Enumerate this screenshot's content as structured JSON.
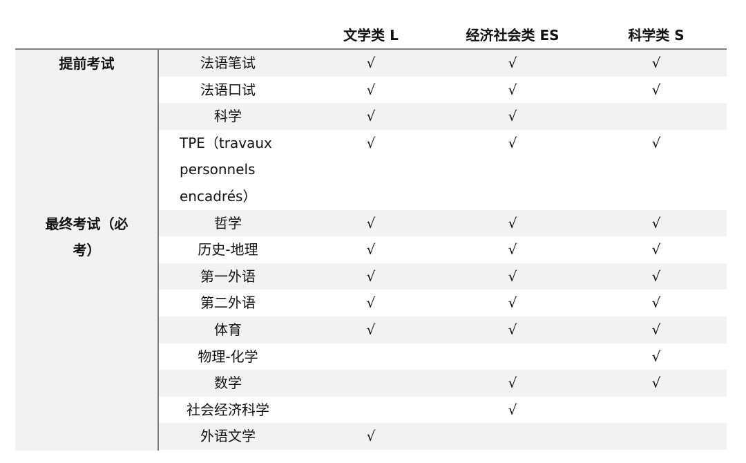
{
  "columns": {
    "group": "",
    "subject": "",
    "l": "文学类 L",
    "es": "经济社会类 ES",
    "s": "科学类 S"
  },
  "groups": {
    "early": "提前考试",
    "final": "最终考试（必考）"
  },
  "check_mark": "√",
  "rows": [
    {
      "subject": "法语笔试",
      "l": "√",
      "es": "√",
      "s": "√"
    },
    {
      "subject": "法语口试",
      "l": "√",
      "es": "√",
      "s": "√"
    },
    {
      "subject": "科学",
      "l": "√",
      "es": "√",
      "s": ""
    },
    {
      "subject": "TPE（travaux personnels encadrés）",
      "l": "√",
      "es": "√",
      "s": "√"
    },
    {
      "subject": "哲学",
      "l": "√",
      "es": "√",
      "s": "√"
    },
    {
      "subject": "历史-地理",
      "l": "√",
      "es": "√",
      "s": "√"
    },
    {
      "subject": "第一外语",
      "l": "√",
      "es": "√",
      "s": "√"
    },
    {
      "subject": "第二外语",
      "l": "√",
      "es": "√",
      "s": "√"
    },
    {
      "subject": "体育",
      "l": "√",
      "es": "√",
      "s": "√"
    },
    {
      "subject": "物理-化学",
      "l": "",
      "es": "",
      "s": "√"
    },
    {
      "subject": "数学",
      "l": "",
      "es": "√",
      "s": "√"
    },
    {
      "subject": "社会经济科学",
      "l": "",
      "es": "√",
      "s": ""
    },
    {
      "subject": "外语文学",
      "l": "√",
      "es": "",
      "s": ""
    }
  ]
}
